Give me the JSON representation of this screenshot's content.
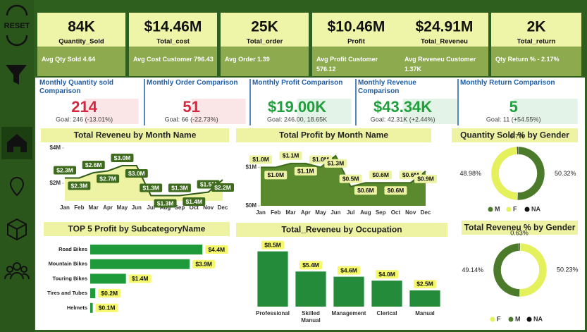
{
  "sidebar": {
    "reset": "RESET"
  },
  "kpis": [
    {
      "value": "84K",
      "name": "Quantity_Sold",
      "detail": "Avg Qty Sold 4.64"
    },
    {
      "value": "$14.46M",
      "name": "Total_cost",
      "detail": "Avg Cost Customer 796.43"
    },
    {
      "value": "25K",
      "name": "Total_order",
      "detail": "Avg Order 1.39"
    },
    {
      "value": "$10.46M",
      "name": "Profit",
      "detail": "Avg Profit Customer 576.12"
    },
    {
      "value": "$24.91M",
      "name": "Total_Reveneu",
      "detail": "Avg Reveneu Customer 1.37K"
    },
    {
      "value": "2K",
      "name": "Total_return",
      "detail": "Qty Return % - 2.17%"
    }
  ],
  "comparisons": [
    {
      "title": "Monthly Quantity sold Comparison",
      "value": "214",
      "goal": "Goal: 246 (-13.01%)",
      "color": "#d7263d"
    },
    {
      "title": "Monthly Order Comparison",
      "value": "51",
      "goal": "Goal: 66 (-22.73%)",
      "color": "#d7263d"
    },
    {
      "title": "Monthly Profit Comparison",
      "value": "$19.00K",
      "goal": "Goal: 246.00, 18.65K",
      "color": "#1fa03c"
    },
    {
      "title": "Monthly Revenue Comparison",
      "value": "$43.34K",
      "goal": "Goal: 42.31K (+2.44%)",
      "color": "#1fa03c"
    },
    {
      "title": "Monthly Return Comparison",
      "value": "5",
      "goal": "Goal: 11 (+54.55%)",
      "color": "#1fa03c"
    }
  ],
  "chart_data": [
    {
      "type": "area",
      "title": "Total Reveneu by Month Name",
      "categories": [
        "Jan",
        "Feb",
        "Mar",
        "Apr",
        "May",
        "Jun",
        "Jul",
        "Aug",
        "Sep",
        "Oct",
        "Nov",
        "Dec"
      ],
      "values": [
        2.3,
        2.3,
        2.6,
        2.7,
        3.0,
        3.0,
        1.3,
        1.3,
        1.3,
        1.4,
        1.5,
        2.2
      ],
      "value_labels": [
        "$2.3M",
        "$2.3M",
        "$2.6M",
        "$2.7M",
        "$3.0M",
        "$3.0M",
        "$1.3M",
        "$1.3M",
        "$1.3M",
        "$1.4M",
        "$1.5M",
        "$2.2M"
      ],
      "color": "#2f5a1a",
      "fill": "#eef3a3",
      "ylim": [
        1,
        4
      ],
      "yticks": [
        {
          "value": 2,
          "label": "$2M"
        },
        {
          "value": 4,
          "label": "$4M"
        }
      ]
    },
    {
      "type": "area",
      "title": "Total Profit by Month Name",
      "categories": [
        "Jan",
        "Feb",
        "Mar",
        "Apr",
        "May",
        "Jun",
        "Jul",
        "Aug",
        "Sep",
        "Oct",
        "Nov",
        "Dec"
      ],
      "values": [
        1.0,
        1.0,
        1.1,
        1.1,
        1.0,
        1.3,
        0.5,
        0.6,
        0.6,
        0.6,
        0.6,
        0.9
      ],
      "value_labels": [
        "$1.0M",
        "$1.0M",
        "$1.1M",
        "$1.1M",
        "$1.0M",
        "$1.3M",
        "$0.5M",
        "$0.6M",
        "$0.6M",
        "$0.6M",
        "$0.6M",
        "$0.9M"
      ],
      "color": "#3e6b1e",
      "fill": "#5b8a2e",
      "ylim": [
        0,
        1.5
      ],
      "yticks": [
        {
          "value": 0,
          "label": "$0M"
        },
        {
          "value": 1,
          "label": "$1M"
        }
      ]
    },
    {
      "type": "donut",
      "title": "Quantity Sold % by Gender",
      "categories": [
        "M",
        "F",
        "NA"
      ],
      "values": [
        50.32,
        48.98,
        0.7
      ],
      "value_labels": [
        "50.32%",
        "48.98%",
        "0.7%"
      ],
      "colors": [
        "#4a7a2a",
        "#e4f05c",
        "#111111"
      ]
    },
    {
      "type": "hbar",
      "title": "TOP 5 Profit by SubcategoryName",
      "categories": [
        "Road Bikes",
        "Mountain Bikes",
        "Touring Bikes",
        "Tires and Tubes",
        "Helmets"
      ],
      "values": [
        4.4,
        3.9,
        1.4,
        0.2,
        0.1
      ],
      "value_labels": [
        "$4.4M",
        "$3.9M",
        "$1.4M",
        "$0.2M",
        "$0.1M"
      ],
      "color": "#1f9a3a",
      "xlim": [
        0,
        5
      ]
    },
    {
      "type": "bar",
      "title": "Total_Reveneu by Occupation",
      "categories": [
        "Professional",
        "Skilled Manual",
        "Management",
        "Clerical",
        "Manual"
      ],
      "values": [
        8.5,
        5.4,
        4.6,
        4.0,
        2.5
      ],
      "value_labels": [
        "$8.5M",
        "$5.4M",
        "$4.6M",
        "$4.0M",
        "$2.5M"
      ],
      "color": "#238b3a",
      "ylim": [
        0,
        9
      ]
    },
    {
      "type": "donut",
      "title": "Total Reveneu % by Gender",
      "categories": [
        "F",
        "M",
        "NA"
      ],
      "values": [
        50.23,
        49.14,
        0.63
      ],
      "value_labels": [
        "50.23%",
        "49.14%",
        "0.63%"
      ],
      "colors": [
        "#e4f05c",
        "#4a7a2a",
        "#111111"
      ]
    }
  ]
}
